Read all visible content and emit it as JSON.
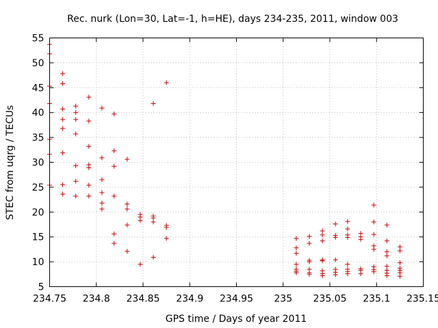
{
  "chart_data": {
    "type": "scatter",
    "title": "Rec. nurk (Lon=30, Lat=-1, h=HE), days 234-235, 2011, window 003",
    "xlabel": "GPS time / Days of year 2011",
    "ylabel": "STEC from uqrg / TECUs",
    "xlim": [
      234.75,
      235.15
    ],
    "ylim": [
      5,
      55
    ],
    "x_ticks": [
      "234.75",
      "234.8",
      "234.85",
      "234.9",
      "234.95",
      "235",
      "235.05",
      "235.1",
      "235.15"
    ],
    "y_ticks": [
      "5",
      "10",
      "15",
      "20",
      "25",
      "30",
      "35",
      "40",
      "45",
      "50",
      "55"
    ],
    "grid": true,
    "marker": "+",
    "color": "#cc0000",
    "points": [
      [
        234.75,
        53.7
      ],
      [
        234.75,
        51.8
      ],
      [
        234.75,
        45.3
      ],
      [
        234.75,
        41.8
      ],
      [
        234.75,
        34.6
      ],
      [
        234.75,
        31.6
      ],
      [
        234.75,
        25.4
      ],
      [
        234.764,
        47.8
      ],
      [
        234.764,
        45.8
      ],
      [
        234.764,
        40.7
      ],
      [
        234.764,
        38.6
      ],
      [
        234.764,
        36.8
      ],
      [
        234.764,
        31.9
      ],
      [
        234.764,
        25.5
      ],
      [
        234.764,
        23.6
      ],
      [
        234.778,
        41.3
      ],
      [
        234.778,
        40.0
      ],
      [
        234.778,
        38.6
      ],
      [
        234.778,
        35.7
      ],
      [
        234.778,
        29.3
      ],
      [
        234.778,
        26.2
      ],
      [
        234.778,
        23.2
      ],
      [
        234.792,
        43.1
      ],
      [
        234.792,
        38.3
      ],
      [
        234.792,
        33.2
      ],
      [
        234.792,
        29.5
      ],
      [
        234.792,
        28.9
      ],
      [
        234.792,
        25.4
      ],
      [
        234.792,
        23.2
      ],
      [
        234.806,
        40.9
      ],
      [
        234.806,
        30.9
      ],
      [
        234.806,
        26.5
      ],
      [
        234.806,
        23.9
      ],
      [
        234.806,
        21.8
      ],
      [
        234.806,
        20.6
      ],
      [
        234.819,
        39.7
      ],
      [
        234.819,
        32.3
      ],
      [
        234.819,
        29.2
      ],
      [
        234.819,
        23.2
      ],
      [
        234.819,
        15.6
      ],
      [
        234.819,
        13.7
      ],
      [
        234.833,
        30.6
      ],
      [
        234.833,
        21.6
      ],
      [
        234.833,
        20.6
      ],
      [
        234.833,
        17.4
      ],
      [
        234.833,
        12.1
      ],
      [
        234.847,
        19.5
      ],
      [
        234.847,
        19.0
      ],
      [
        234.847,
        18.3
      ],
      [
        234.847,
        9.5
      ],
      [
        234.861,
        41.8
      ],
      [
        234.861,
        19.2
      ],
      [
        234.861,
        18.8
      ],
      [
        234.861,
        18.0
      ],
      [
        234.861,
        10.9
      ],
      [
        234.875,
        46.0
      ],
      [
        234.875,
        17.3
      ],
      [
        234.875,
        16.9
      ],
      [
        234.875,
        14.7
      ],
      [
        235.014,
        14.7
      ],
      [
        235.014,
        12.8
      ],
      [
        235.014,
        11.7
      ],
      [
        235.014,
        9.5
      ],
      [
        235.014,
        8.5
      ],
      [
        235.014,
        8.1
      ],
      [
        235.014,
        7.8
      ],
      [
        235.028,
        15.1
      ],
      [
        235.028,
        13.7
      ],
      [
        235.028,
        10.3
      ],
      [
        235.028,
        10.0
      ],
      [
        235.028,
        8.5
      ],
      [
        235.028,
        7.8
      ],
      [
        235.028,
        7.5
      ],
      [
        235.042,
        16.2
      ],
      [
        235.042,
        15.4
      ],
      [
        235.042,
        14.2
      ],
      [
        235.042,
        10.4
      ],
      [
        235.042,
        10.2
      ],
      [
        235.042,
        8.2
      ],
      [
        235.042,
        7.6
      ],
      [
        235.042,
        7.2
      ],
      [
        235.056,
        17.6
      ],
      [
        235.056,
        15.3
      ],
      [
        235.056,
        14.9
      ],
      [
        235.056,
        10.4
      ],
      [
        235.056,
        8.5
      ],
      [
        235.056,
        7.9
      ],
      [
        235.056,
        7.4
      ],
      [
        235.069,
        18.1
      ],
      [
        235.069,
        16.6
      ],
      [
        235.069,
        15.4
      ],
      [
        235.069,
        14.9
      ],
      [
        235.069,
        9.5
      ],
      [
        235.069,
        8.5
      ],
      [
        235.069,
        8.0
      ],
      [
        235.069,
        7.6
      ],
      [
        235.083,
        15.7
      ],
      [
        235.083,
        15.0
      ],
      [
        235.083,
        14.5
      ],
      [
        235.083,
        8.6
      ],
      [
        235.083,
        8.3
      ],
      [
        235.083,
        7.6
      ],
      [
        235.097,
        21.4
      ],
      [
        235.097,
        18.0
      ],
      [
        235.097,
        15.5
      ],
      [
        235.097,
        13.2
      ],
      [
        235.097,
        12.5
      ],
      [
        235.097,
        9.0
      ],
      [
        235.097,
        8.4
      ],
      [
        235.097,
        8.0
      ],
      [
        235.111,
        17.4
      ],
      [
        235.111,
        14.2
      ],
      [
        235.111,
        12.0
      ],
      [
        235.111,
        11.2
      ],
      [
        235.111,
        9.1
      ],
      [
        235.111,
        8.3
      ],
      [
        235.111,
        7.7
      ],
      [
        235.111,
        7.2
      ],
      [
        235.125,
        13.0
      ],
      [
        235.125,
        12.2
      ],
      [
        235.125,
        9.8
      ],
      [
        235.125,
        8.7
      ],
      [
        235.125,
        8.3
      ],
      [
        235.125,
        7.8
      ],
      [
        235.125,
        7.1
      ]
    ]
  }
}
